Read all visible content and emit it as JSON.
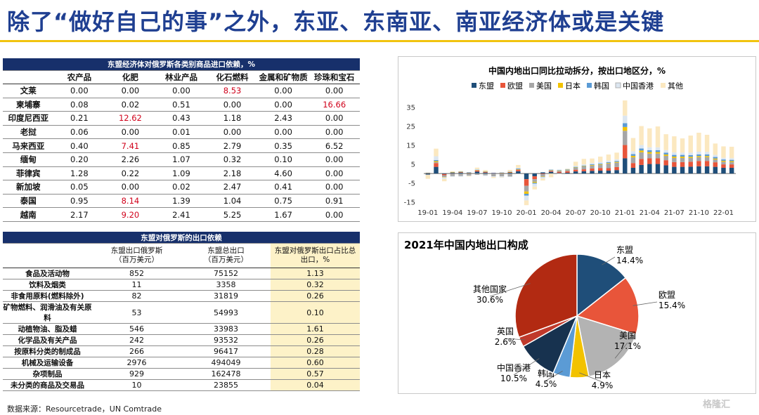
{
  "title": "除了“做好自己的事”之外，东亚、东南亚、南亚经济体或是关键",
  "table1": {
    "caption": "东盟经济体对俄罗斯各类别商品进口依赖，%",
    "headers": [
      "",
      "农产品",
      "化肥",
      "林业产品",
      "化石燃料",
      "金属和矿物质",
      "珍珠和宝石"
    ],
    "rows": [
      {
        "name": "文莱",
        "values": [
          "0.00",
          "0.00",
          "0.00",
          "8.53",
          "0.00",
          "0.00"
        ]
      },
      {
        "name": "柬埔寨",
        "values": [
          "0.08",
          "0.02",
          "0.51",
          "0.00",
          "0.00",
          "16.66"
        ]
      },
      {
        "name": "印度尼西亚",
        "values": [
          "0.21",
          "12.62",
          "0.43",
          "1.18",
          "2.43",
          "0.00"
        ]
      },
      {
        "name": "老挝",
        "values": [
          "0.06",
          "0.00",
          "0.01",
          "0.00",
          "0.00",
          "0.00"
        ]
      },
      {
        "name": "马来西亚",
        "values": [
          "0.40",
          "7.41",
          "0.85",
          "2.79",
          "0.35",
          "6.52"
        ]
      },
      {
        "name": "缅甸",
        "values": [
          "0.20",
          "2.26",
          "1.07",
          "0.32",
          "0.10",
          "0.00"
        ]
      },
      {
        "name": "菲律宾",
        "values": [
          "1.28",
          "0.22",
          "1.09",
          "2.18",
          "4.60",
          "0.00"
        ]
      },
      {
        "name": "新加坡",
        "values": [
          "0.05",
          "0.00",
          "0.02",
          "2.47",
          "0.41",
          "0.00"
        ]
      },
      {
        "name": "泰国",
        "values": [
          "0.95",
          "8.14",
          "1.39",
          "1.04",
          "0.75",
          "0.91"
        ]
      },
      {
        "name": "越南",
        "values": [
          "2.17",
          "9.20",
          "2.41",
          "5.25",
          "1.67",
          "0.00"
        ]
      }
    ],
    "highlight": "#d0021b"
  },
  "table2": {
    "caption": "东盟对俄罗斯的出口依赖",
    "headers": [
      "",
      "东盟出口俄罗斯\n（百万美元）",
      "东盟总出口\n（百万美元）",
      "东盟对俄罗斯出口占比总\n出口，%"
    ],
    "rows": [
      {
        "name": "食品及活动物",
        "values": [
          "852",
          "75152",
          "1.13"
        ]
      },
      {
        "name": "饮料及烟类",
        "values": [
          "11",
          "3358",
          "0.32"
        ]
      },
      {
        "name": "非食用原料(燃料除外)",
        "values": [
          "82",
          "31819",
          "0.26"
        ]
      },
      {
        "name": "矿物燃料、润滑油及有关原料",
        "values": [
          "53",
          "54993",
          "0.10"
        ]
      },
      {
        "name": "动植物油、脂及蜡",
        "values": [
          "546",
          "33983",
          "1.61"
        ]
      },
      {
        "name": "化学品及有关产品",
        "values": [
          "242",
          "93532",
          "0.26"
        ]
      },
      {
        "name": "按原料分类的制成品",
        "values": [
          "266",
          "96417",
          "0.28"
        ]
      },
      {
        "name": "机械及运输设备",
        "values": [
          "2976",
          "494049",
          "0.60"
        ]
      },
      {
        "name": "杂项制品",
        "values": [
          "929",
          "162478",
          "0.57"
        ]
      },
      {
        "name": "未分类的商品及交易品",
        "values": [
          "10",
          "23855",
          "0.04"
        ]
      }
    ]
  },
  "source": "数据来源：Resourcetrade，UN Comtrade",
  "watermark": "格隆汇",
  "chart_data": [
    {
      "type": "bar",
      "stacked": true,
      "title": "中国内地出口同比拉动拆分，按出口地区分，%",
      "legend": [
        "东盟",
        "欧盟",
        "美国",
        "日本",
        "韩国",
        "中国香港",
        "其他"
      ],
      "colors": [
        "#1f4e79",
        "#e8553a",
        "#a6a6a6",
        "#f2c200",
        "#5b9bd5",
        "#dce6f0",
        "#fbe8c0"
      ],
      "yticks": [
        "35",
        "25",
        "15",
        "5",
        "-5",
        "-15"
      ],
      "ylim": [
        -17,
        40
      ],
      "xticks": [
        "19-01",
        "19-04",
        "19-07",
        "19-10",
        "20-01",
        "20-04",
        "20-07",
        "20-10",
        "21-01",
        "21-04",
        "21-07",
        "21-10",
        "22-01"
      ],
      "periods": [
        "19-01",
        "19-02",
        "19-03",
        "19-04",
        "19-05",
        "19-06",
        "19-07",
        "19-08",
        "19-09",
        "19-10",
        "19-11",
        "19-12",
        "20-01",
        "20-02",
        "20-03",
        "20-04",
        "20-05",
        "20-06",
        "20-07",
        "20-08",
        "20-09",
        "20-10",
        "20-11",
        "20-12",
        "21-01",
        "21-02",
        "21-03",
        "21-04",
        "21-05",
        "21-06",
        "21-07",
        "21-08",
        "21-09",
        "21-10",
        "21-11",
        "21-12",
        "22-01",
        "22-02"
      ],
      "series": [
        {
          "name": "东盟",
          "values": [
            -0.5,
            3.5,
            -0.3,
            0.4,
            0.5,
            0.3,
            1.0,
            0.5,
            0.2,
            0.2,
            0.4,
            1.2,
            -3.0,
            -1.5,
            0.6,
            0.9,
            0.3,
            0.4,
            1.1,
            1.2,
            1.4,
            1.5,
            1.5,
            1.8,
            8.0,
            3.0,
            4.5,
            5.0,
            5.0,
            4.3,
            3.5,
            3.5,
            3.6,
            3.8,
            3.8,
            3.5,
            3.0,
            3.0
          ]
        },
        {
          "name": "欧盟",
          "values": [
            0.2,
            2.0,
            -0.6,
            0.1,
            0.3,
            0.1,
            0.6,
            0.4,
            0.1,
            0.1,
            0.3,
            0.8,
            -3.5,
            -1.5,
            -0.3,
            0.4,
            0.6,
            0.8,
            0.9,
            1.0,
            1.2,
            1.4,
            1.3,
            1.6,
            7.0,
            2.5,
            3.2,
            3.0,
            3.0,
            2.7,
            2.5,
            2.5,
            2.6,
            2.8,
            2.8,
            2.4,
            1.8,
            1.8
          ]
        },
        {
          "name": "美国",
          "values": [
            -0.3,
            0.5,
            -1.0,
            -1.4,
            -1.3,
            -1.1,
            -0.7,
            -0.9,
            -1.5,
            -1.5,
            -1.6,
            -0.2,
            -3.0,
            -1.4,
            -1.3,
            0.4,
            0.6,
            0.7,
            1.0,
            1.5,
            1.6,
            1.7,
            2.5,
            2.3,
            7.5,
            3.0,
            3.5,
            2.5,
            2.5,
            2.3,
            2.2,
            2.2,
            2.0,
            2.0,
            2.0,
            1.5,
            1.4,
            1.2
          ]
        },
        {
          "name": "日本",
          "values": [
            0.1,
            0.5,
            -0.2,
            0.1,
            0.1,
            0.1,
            0.2,
            0.1,
            0.0,
            0.1,
            0.1,
            0.2,
            -1.2,
            -0.5,
            -0.2,
            0.1,
            0.1,
            0.1,
            0.2,
            0.2,
            0.3,
            0.3,
            0.3,
            0.4,
            2.0,
            0.8,
            0.9,
            0.8,
            0.8,
            0.7,
            0.7,
            0.7,
            0.6,
            0.6,
            0.6,
            0.5,
            0.5,
            0.5
          ]
        },
        {
          "name": "韩国",
          "values": [
            0.1,
            0.6,
            0.0,
            0.2,
            0.2,
            0.1,
            0.2,
            0.2,
            0.1,
            0.1,
            0.2,
            0.4,
            -1.0,
            -0.5,
            -0.1,
            0.2,
            0.2,
            0.2,
            0.3,
            0.3,
            0.4,
            0.4,
            0.4,
            0.5,
            2.0,
            0.9,
            1.1,
            1.0,
            1.0,
            1.0,
            0.9,
            0.9,
            0.9,
            0.9,
            0.9,
            0.8,
            0.7,
            0.7
          ]
        },
        {
          "name": "中国香港",
          "values": [
            0.2,
            2.0,
            -0.8,
            -0.4,
            -0.4,
            -0.2,
            0.3,
            -0.4,
            -0.3,
            -0.5,
            -0.3,
            0.3,
            -2.5,
            -1.5,
            -0.8,
            0.3,
            0.3,
            0.3,
            0.5,
            0.6,
            0.7,
            0.8,
            0.8,
            0.9,
            4.0,
            1.5,
            1.8,
            1.5,
            1.5,
            1.3,
            1.3,
            1.2,
            1.3,
            1.4,
            1.3,
            1.1,
            0.9,
            0.9
          ]
        },
        {
          "name": "其他",
          "values": [
            -2.0,
            4.0,
            -1.2,
            0.4,
            0.2,
            -0.3,
            0.8,
            0.6,
            -0.6,
            -0.2,
            0.9,
            1.6,
            -2.5,
            -1.5,
            -1.0,
            -2.0,
            -0.1,
            0.1,
            2.2,
            2.9,
            2.3,
            2.8,
            3.2,
            3.5,
            8.0,
            7.0,
            10.0,
            10.0,
            11.0,
            8.4,
            8.5,
            7.5,
            9.0,
            10.0,
            9.0,
            6.0,
            6.0,
            6.0
          ]
        }
      ]
    },
    {
      "type": "pie",
      "title": "2021年中国内地出口构成",
      "labels": [
        "东盟",
        "欧盟",
        "美国",
        "日本",
        "韩国",
        "中国香港",
        "英国",
        "其他国家"
      ],
      "values": [
        14.4,
        15.4,
        17.1,
        4.9,
        4.5,
        10.5,
        2.6,
        30.6
      ],
      "value_labels": [
        "14.4%",
        "15.4%",
        "17.1%",
        "4.9%",
        "4.5%",
        "10.5%",
        "2.6%",
        "30.6%"
      ],
      "colors": [
        "#1f4e79",
        "#e8553a",
        "#a6a6a6",
        "#f2c200",
        "#5b9bd5",
        "#1c3a5a",
        "#c0392b",
        "#c0392b"
      ]
    }
  ]
}
